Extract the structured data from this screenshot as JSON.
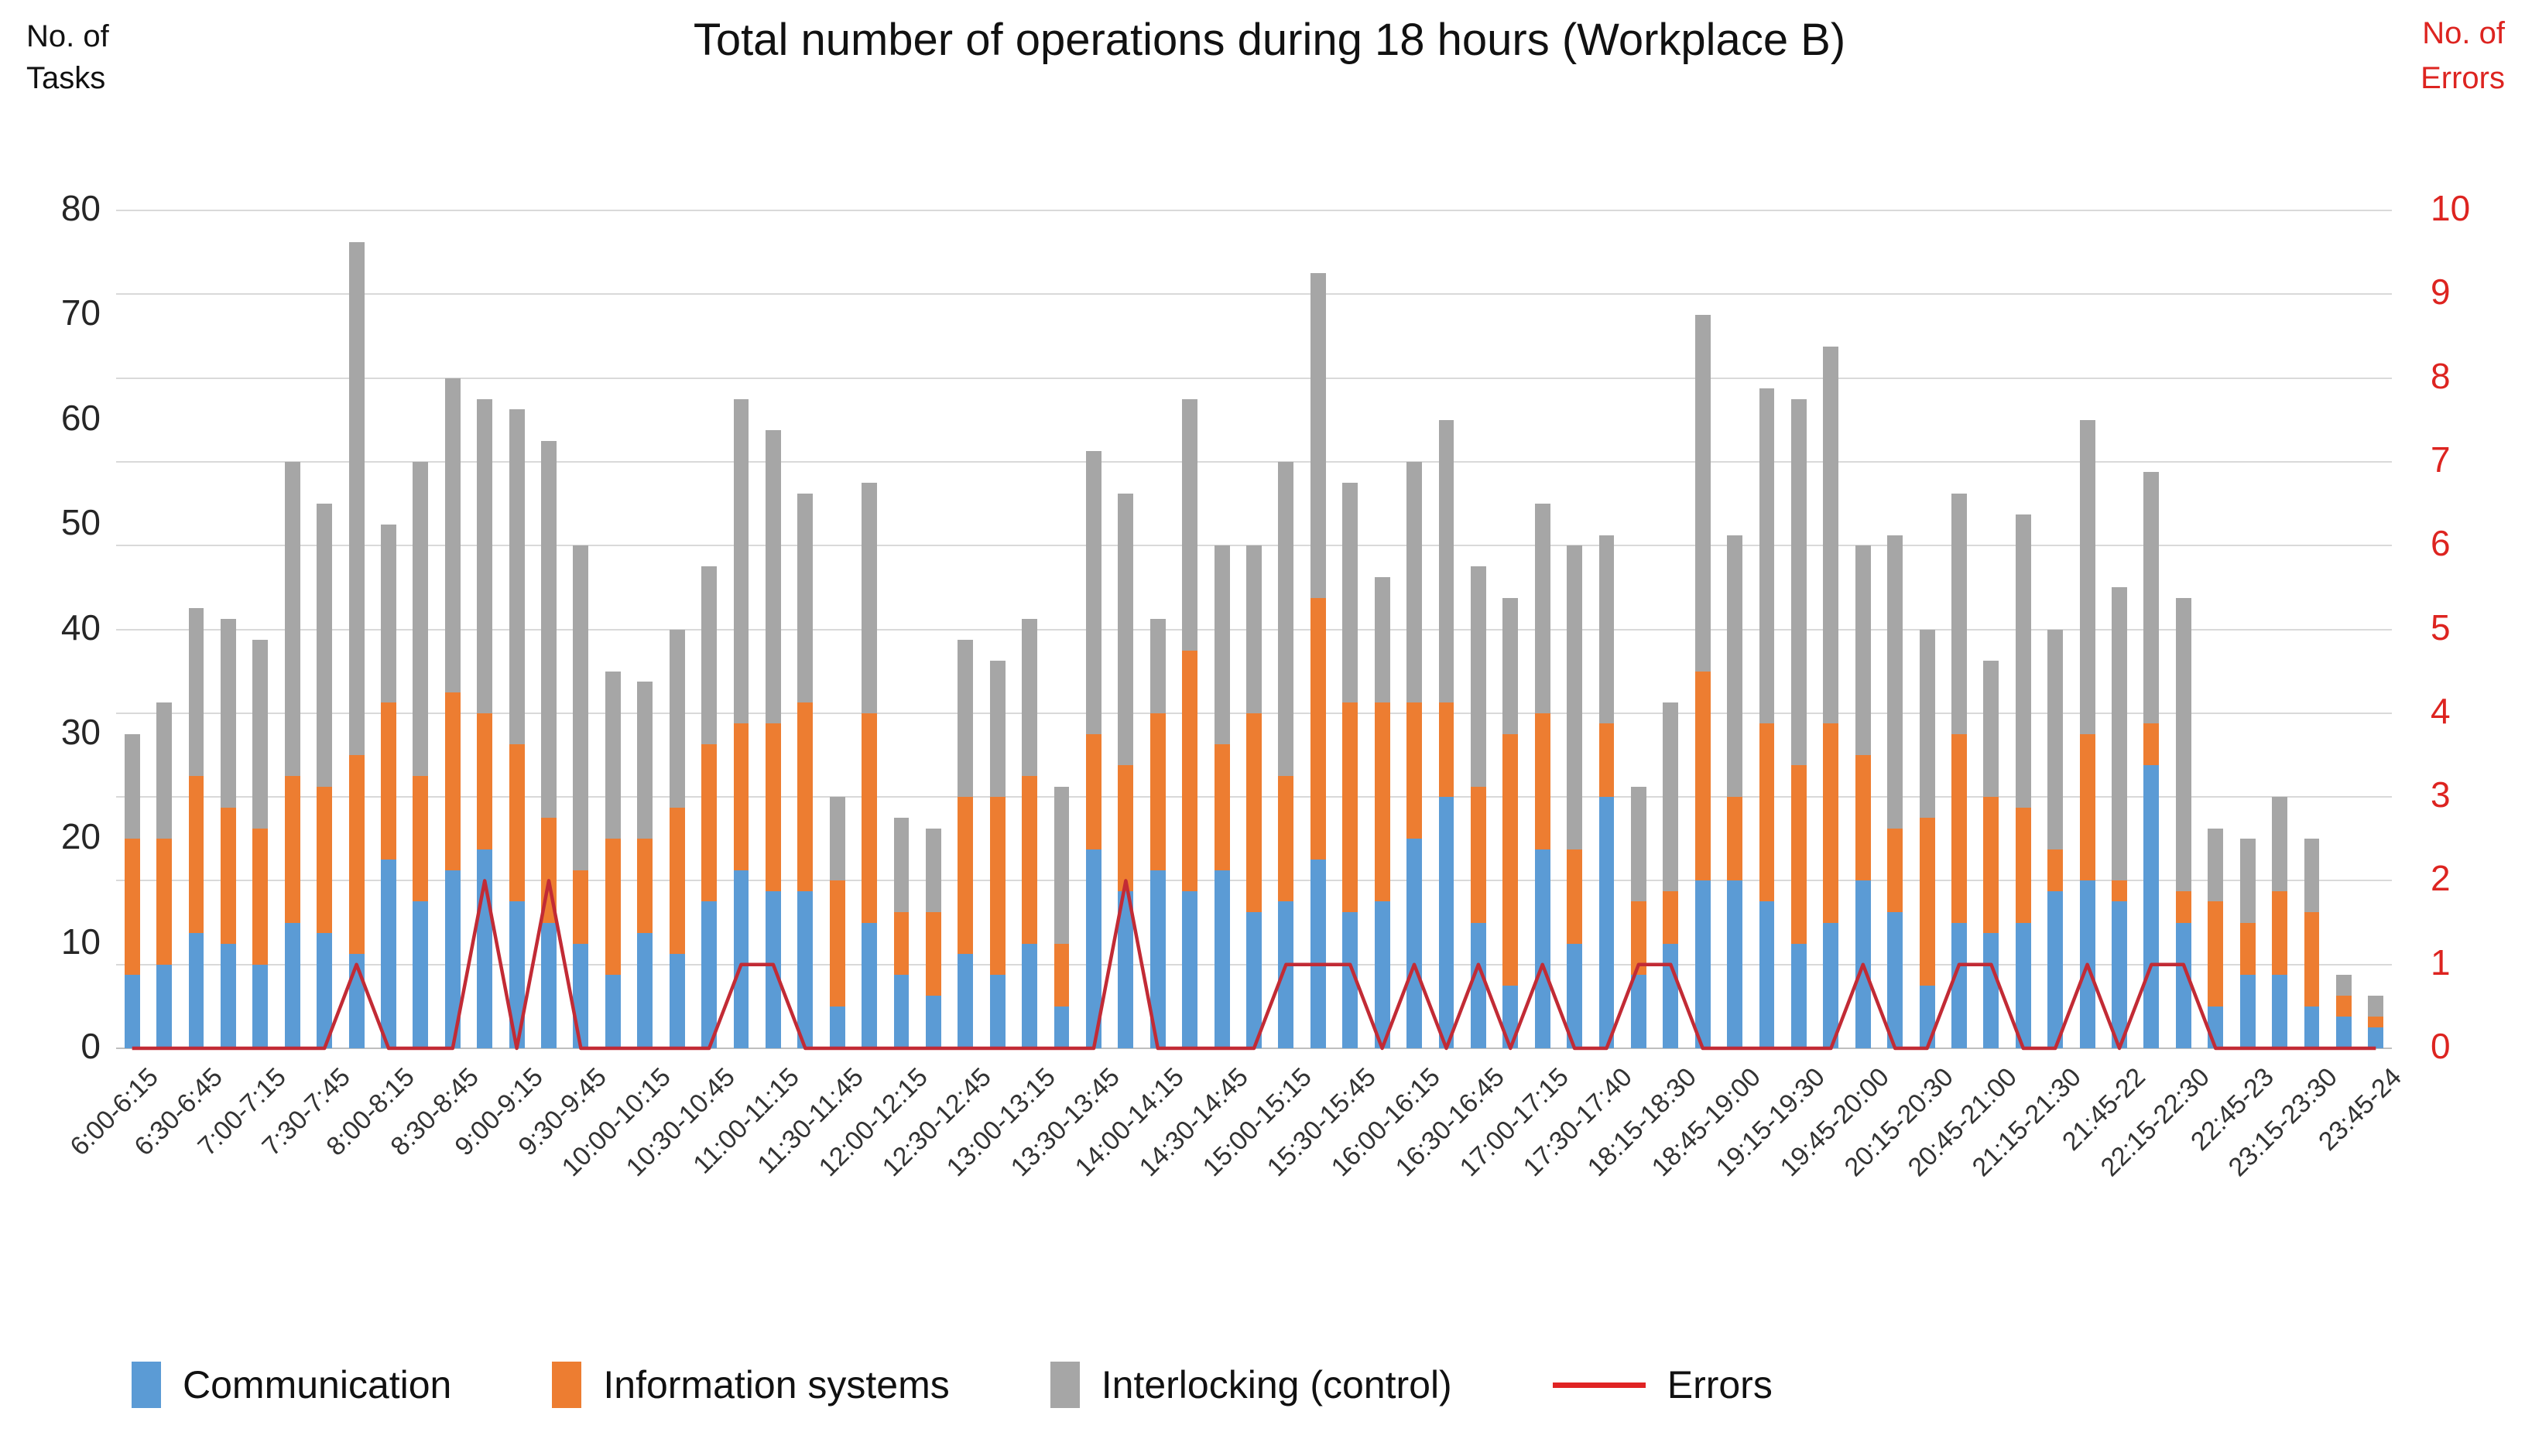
{
  "title": "Total number of operations during 18 hours (Workplace B)",
  "axis_headers": {
    "left_line1": "No. of",
    "left_line2": "Tasks",
    "right_line1": "No. of",
    "right_line2": "Errors"
  },
  "legend": {
    "items": [
      {
        "label": "Communication",
        "marker": "swatch",
        "color": "#5B9BD5"
      },
      {
        "label": "Information systems",
        "marker": "swatch",
        "color": "#ED7D31"
      },
      {
        "label": "Interlocking (control)",
        "marker": "swatch",
        "color": "#A6A6A6"
      },
      {
        "label": "Errors",
        "marker": "line",
        "color": "#E02424"
      }
    ]
  },
  "colors": {
    "communication": "#5B9BD5",
    "information_systems": "#ED7D31",
    "interlocking": "#A6A6A6",
    "errors_line": "#C22B35",
    "gridline": "#D9D9D9",
    "axis_line": "#BFBFBF",
    "right_axis_text": "#DD2420",
    "left_axis_text": "#262626"
  },
  "chart_data": {
    "type": "bar",
    "subtype": "stacked-column-with-line-overlay",
    "title": "Total number of operations during 18 hours (Workplace B)",
    "n_bars": 71,
    "x_interval_minutes": 15,
    "x_labels_every_other_bar": true,
    "x_tick_labels": [
      "6:00-6:15",
      "6:30-6:45",
      "7:00-7:15",
      "7:30-7:45",
      "8:00-8:15",
      "8:30-8:45",
      "9:00-9:15",
      "9:30-9:45",
      "10:00-10:15",
      "10:30-10:45",
      "11:00-11:15",
      "11:30-11:45",
      "12:00-12:15",
      "12:30-12:45",
      "13:00-13:15",
      "13:30-13:45",
      "14:00-14:15",
      "14:30-14:45",
      "15:00-15:15",
      "15:30-15:45",
      "16:00-16:15",
      "16:30-16:45",
      "17:00-17:15",
      "17:30-17:40",
      "18:15-18:30",
      "18:45-19:00",
      "19:15-19:30",
      "19:45-20:00",
      "20:15-20:30",
      "20:45-21:00",
      "21:15-21:30",
      "21:45-22",
      "22:15-22:30",
      "22:45-23",
      "23:15-23:30",
      "23:45-24"
    ],
    "y_left": {
      "label": "No. of Tasks",
      "min": 0,
      "max": 80,
      "tick_step": 10
    },
    "y_right": {
      "label": "No. of Errors",
      "min": 0,
      "max": 10,
      "tick_step": 1
    },
    "gridlines": "horizontal, one per right-axis unit (every 8 tasks), light gray",
    "series": [
      {
        "name": "Communication",
        "color": "#5B9BD5",
        "values": [
          7,
          8,
          11,
          10,
          8,
          12,
          11,
          9,
          18,
          14,
          17,
          19,
          14,
          12,
          10,
          7,
          11,
          9,
          14,
          17,
          15,
          15,
          4,
          12,
          7,
          5,
          9,
          7,
          10,
          4,
          19,
          15,
          17,
          15,
          17,
          13,
          14,
          18,
          13,
          14,
          20,
          24,
          12,
          6,
          19,
          10,
          24,
          7,
          10,
          16,
          16,
          14,
          10,
          12,
          16,
          13,
          6,
          12,
          11,
          12,
          15,
          16,
          14,
          27,
          12,
          4,
          7,
          7,
          4,
          3,
          2
        ]
      },
      {
        "name": "Information systems",
        "color": "#ED7D31",
        "values": [
          13,
          12,
          15,
          13,
          13,
          14,
          14,
          19,
          15,
          12,
          17,
          13,
          15,
          10,
          7,
          13,
          9,
          14,
          15,
          14,
          16,
          18,
          12,
          20,
          6,
          8,
          15,
          17,
          16,
          6,
          11,
          12,
          15,
          23,
          12,
          19,
          12,
          25,
          20,
          19,
          13,
          9,
          13,
          24,
          13,
          9,
          7,
          7,
          5,
          20,
          8,
          17,
          17,
          19,
          12,
          8,
          16,
          18,
          13,
          11,
          4,
          14,
          2,
          4,
          3,
          10,
          5,
          8,
          9,
          2,
          1
        ]
      },
      {
        "name": "Interlocking (control)",
        "color": "#A6A6A6",
        "values": [
          10,
          13,
          16,
          18,
          18,
          30,
          27,
          49,
          17,
          30,
          30,
          30,
          32,
          36,
          31,
          16,
          15,
          17,
          17,
          31,
          28,
          20,
          8,
          22,
          9,
          8,
          15,
          13,
          15,
          15,
          27,
          26,
          9,
          24,
          19,
          16,
          30,
          31,
          21,
          12,
          23,
          27,
          21,
          13,
          20,
          29,
          18,
          11,
          18,
          34,
          25,
          32,
          35,
          36,
          20,
          28,
          18,
          23,
          13,
          28,
          21,
          30,
          28,
          24,
          28,
          7,
          8,
          9,
          7,
          2,
          2
        ]
      }
    ],
    "line_series": {
      "name": "Errors",
      "axis": "right",
      "color": "#C22B35",
      "values": [
        0,
        0,
        0,
        0,
        0,
        0,
        0,
        1,
        0,
        0,
        0,
        2,
        0,
        2,
        0,
        0,
        0,
        0,
        0,
        1,
        1,
        0,
        0,
        0,
        0,
        0,
        0,
        0,
        0,
        0,
        0,
        2,
        0,
        0,
        0,
        0,
        1,
        1,
        1,
        0,
        1,
        0,
        1,
        0,
        1,
        0,
        0,
        1,
        1,
        0,
        0,
        0,
        0,
        0,
        1,
        0,
        0,
        1,
        1,
        0,
        0,
        1,
        0,
        1,
        1,
        0,
        0,
        0,
        0,
        0,
        0
      ]
    }
  }
}
